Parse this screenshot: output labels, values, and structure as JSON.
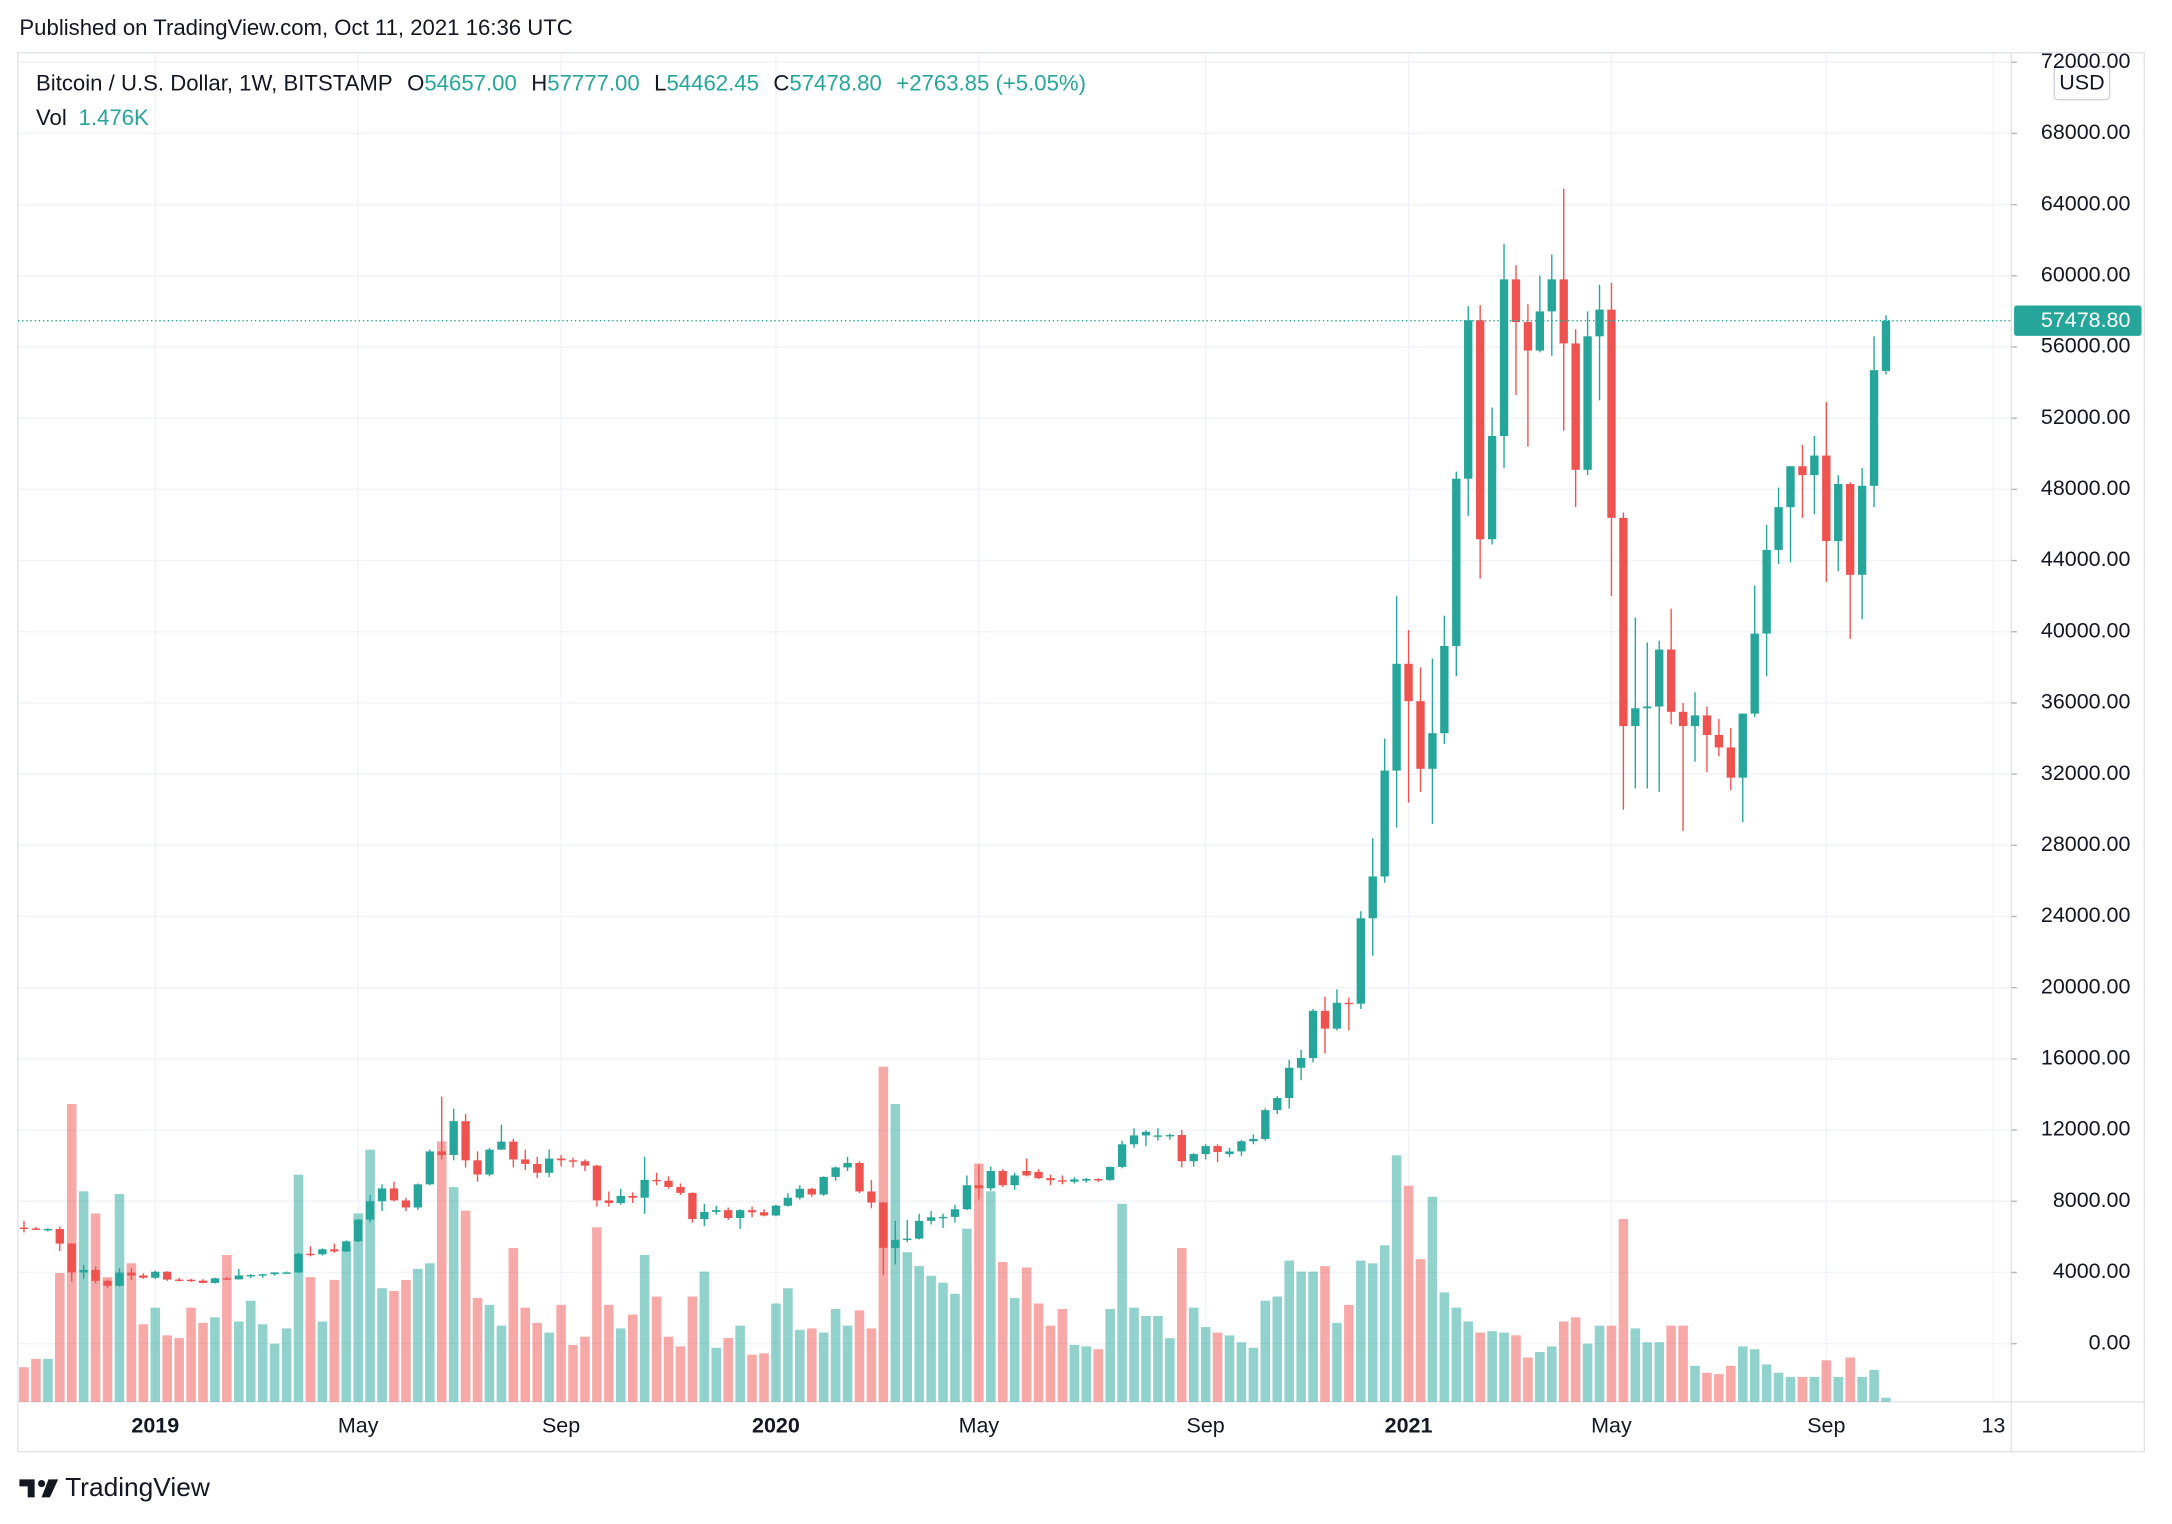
{
  "published": "Published on TradingView.com, Oct 11, 2021 16:36 UTC",
  "logo": "TradingView",
  "chart_data": {
    "type": "candlestick",
    "title": "Bitcoin / U.S. Dollar, 1W, BITSTAMP",
    "ohlc": [
      {
        "label": "O",
        "value": "54657.00"
      },
      {
        "label": "H",
        "value": "57777.00"
      },
      {
        "label": "L",
        "value": "54462.45"
      },
      {
        "label": "C",
        "value": "57478.80"
      }
    ],
    "change": "+2763.85 (+5.05%)",
    "volume_label": "Vol",
    "volume_value": "1.476K",
    "currency": "USD",
    "last_price": {
      "value": 57478.8,
      "label": "57478.80"
    },
    "up_color": "#26a69a",
    "down_color": "#ef5350",
    "grid": true,
    "ylim": [
      -3270,
      72540
    ],
    "yticks": [
      {
        "value": 0,
        "label": "0.00"
      },
      {
        "value": 4000,
        "label": "4000.00"
      },
      {
        "value": 8000,
        "label": "8000.00"
      },
      {
        "value": 12000,
        "label": "12000.00"
      },
      {
        "value": 16000,
        "label": "16000.00"
      },
      {
        "value": 20000,
        "label": "20000.00"
      },
      {
        "value": 24000,
        "label": "24000.00"
      },
      {
        "value": 28000,
        "label": "28000.00"
      },
      {
        "value": 32000,
        "label": "32000.00"
      },
      {
        "value": 36000,
        "label": "36000.00"
      },
      {
        "value": 40000,
        "label": "40000.00"
      },
      {
        "value": 44000,
        "label": "44000.00"
      },
      {
        "value": 48000,
        "label": "48000.00"
      },
      {
        "value": 52000,
        "label": "52000.00"
      },
      {
        "value": 56000,
        "label": "56000.00"
      },
      {
        "value": 60000,
        "label": "60000.00"
      },
      {
        "value": 64000,
        "label": "64000.00"
      },
      {
        "value": 68000,
        "label": "68000.00"
      },
      {
        "value": 72000,
        "label": "72000.00"
      }
    ],
    "categories": [
      null,
      null,
      null,
      null,
      null,
      null,
      null,
      null,
      null,
      null,
      null,
      "2019",
      null,
      null,
      null,
      null,
      null,
      null,
      null,
      null,
      null,
      null,
      null,
      null,
      null,
      null,
      null,
      null,
      "May",
      null,
      null,
      null,
      null,
      null,
      null,
      null,
      null,
      null,
      null,
      null,
      null,
      null,
      null,
      null,
      null,
      "Sep",
      null,
      null,
      null,
      null,
      null,
      null,
      null,
      null,
      null,
      null,
      null,
      null,
      null,
      null,
      null,
      null,
      null,
      "2020",
      null,
      null,
      null,
      null,
      null,
      null,
      null,
      null,
      null,
      null,
      null,
      null,
      null,
      null,
      null,
      null,
      "May",
      null,
      null,
      null,
      null,
      null,
      null,
      null,
      null,
      null,
      null,
      null,
      null,
      null,
      null,
      null,
      null,
      null,
      null,
      "Sep",
      null,
      null,
      null,
      null,
      null,
      null,
      null,
      null,
      null,
      null,
      null,
      null,
      null,
      null,
      null,
      null,
      "2021",
      null,
      null,
      null,
      null,
      null,
      null,
      null,
      null,
      null,
      null,
      null,
      null,
      null,
      null,
      null,
      null,
      "May",
      null,
      null,
      null,
      null,
      null,
      null,
      null,
      null,
      null,
      null,
      null,
      null,
      null,
      null,
      null,
      null,
      null,
      "Sep",
      null,
      null,
      null,
      null,
      null,
      null,
      null,
      null,
      null,
      null,
      null,
      null,
      null,
      "13",
      null
    ],
    "open": [
      6520,
      6470,
      6420,
      6440,
      5620,
      4000,
      4140,
      3530,
      3250,
      3990,
      3830,
      3700,
      4040,
      3600,
      3590,
      3540,
      3410,
      3670,
      3610,
      3830,
      3860,
      3900,
      4000,
      4000,
      5050,
      5020,
      5300,
      5180,
      5750,
      6970,
      8000,
      8720,
      8050,
      7650,
      8950,
      10800,
      10600,
      12500,
      10300,
      9500,
      10900,
      11350,
      10350,
      10100,
      9600,
      10400,
      10300,
      10250,
      10000,
      8050,
      7900,
      8300,
      8200,
      9200,
      9150,
      8800,
      8470,
      7000,
      7400,
      7500,
      7060,
      7500,
      7380,
      7200,
      7750,
      8200,
      8700,
      8380,
      9370,
      9900,
      10150,
      8550,
      7930,
      5380,
      5830,
      5900,
      6900,
      7100,
      7120,
      7550,
      8900,
      8730,
      9700,
      8900,
      9700,
      9650,
      9300,
      9180,
      9100,
      9160,
      9250,
      9200,
      9930,
      11200,
      11700,
      11650,
      11650,
      11720,
      10250,
      10650,
      11100,
      10650,
      10800,
      11370,
      11500,
      13120,
      13800,
      15500,
      16050,
      18700,
      17700,
      19150,
      19100,
      23900,
      26250,
      32200,
      38200,
      36100,
      32300,
      34300,
      39200,
      48600,
      57500,
      45200,
      51000,
      59800,
      57400,
      55800,
      58000,
      59800,
      56200,
      49100,
      56600,
      58100,
      46400,
      34700,
      35700,
      35800,
      39000,
      35500,
      34700,
      35300,
      34200,
      33500,
      31800,
      35400,
      39900,
      44600,
      47000,
      49300,
      48800,
      49900,
      45100,
      48300,
      43200,
      48200,
      54657,
      null,
      null,
      null,
      null,
      null,
      null,
      null,
      null,
      null,
      null
    ],
    "high": [
      6900,
      6560,
      6480,
      6580,
      5650,
      4420,
      4330,
      3600,
      4230,
      4250,
      3950,
      4100,
      4070,
      3700,
      3640,
      3620,
      3700,
      3730,
      4200,
      3900,
      3920,
      4000,
      4050,
      5100,
      5470,
      5350,
      5620,
      5800,
      7000,
      8350,
      8950,
      9100,
      8200,
      9000,
      10900,
      13880,
      13200,
      12900,
      10800,
      11000,
      12300,
      11500,
      10900,
      10500,
      10900,
      10600,
      10450,
      10350,
      10050,
      8550,
      8700,
      8500,
      10500,
      9600,
      9400,
      9000,
      8500,
      7850,
      7750,
      7650,
      7550,
      7700,
      7550,
      7800,
      8450,
      8900,
      8750,
      9400,
      9950,
      10500,
      10250,
      9200,
      7960,
      6900,
      6950,
      7300,
      7450,
      7300,
      7800,
      9450,
      10050,
      9950,
      9800,
      9600,
      10400,
      9800,
      9500,
      9450,
      9350,
      9300,
      9280,
      9950,
      11400,
      12100,
      12000,
      12100,
      11800,
      12000,
      10700,
      11200,
      11200,
      11000,
      11450,
      11750,
      13220,
      13900,
      15950,
      16500,
      18800,
      19500,
      19900,
      19450,
      24300,
      28400,
      34000,
      42000,
      40100,
      38000,
      38500,
      40900,
      49000,
      58300,
      58350,
      52600,
      61800,
      60600,
      58400,
      60000,
      61200,
      64900,
      57000,
      58000,
      59500,
      59600,
      46700,
      40800,
      39400,
      39500,
      41300,
      36000,
      36600,
      35800,
      35100,
      34600,
      35400,
      42600,
      46000,
      48100,
      49300,
      50500,
      51000,
      52900,
      48800,
      48400,
      49200,
      56600,
      57777,
      null,
      null,
      null,
      null,
      null,
      null,
      null,
      null,
      null,
      null
    ],
    "low": [
      6250,
      6380,
      6300,
      5200,
      3480,
      3650,
      3380,
      3120,
      3210,
      3560,
      3650,
      3630,
      3530,
      3500,
      3470,
      3390,
      3380,
      3590,
      3600,
      3680,
      3700,
      3820,
      3950,
      3960,
      4900,
      4950,
      5100,
      5150,
      5700,
      6800,
      7450,
      8000,
      7450,
      7520,
      8900,
      10350,
      10300,
      9900,
      9100,
      9400,
      10900,
      9900,
      9750,
      9300,
      9350,
      9950,
      9900,
      9700,
      7700,
      7700,
      7800,
      7900,
      7300,
      8900,
      8700,
      8350,
      6800,
      6600,
      7250,
      6950,
      6450,
      7100,
      7150,
      7150,
      7700,
      8100,
      8250,
      8300,
      9150,
      9700,
      8450,
      7600,
      3850,
      4450,
      5700,
      5850,
      6700,
      6500,
      6800,
      7500,
      8100,
      8600,
      8800,
      8650,
      9400,
      9250,
      8900,
      8950,
      9000,
      9050,
      9080,
      9150,
      9850,
      11000,
      11100,
      11400,
      11450,
      9900,
      9950,
      10350,
      10200,
      10500,
      10550,
      11200,
      11400,
      12900,
      13200,
      14800,
      15800,
      16300,
      17600,
      17600,
      18800,
      21800,
      25900,
      29000,
      30400,
      31000,
      29200,
      33700,
      37500,
      46500,
      43000,
      44900,
      49200,
      53300,
      50400,
      55700,
      55500,
      51300,
      47000,
      48800,
      53000,
      42000,
      30000,
      31200,
      31200,
      31000,
      34800,
      28800,
      32700,
      32100,
      33000,
      31100,
      29300,
      35200,
      37500,
      43800,
      43900,
      46400,
      46600,
      42800,
      43400,
      39600,
      40700,
      47000,
      54462.45,
      null,
      null,
      null,
      null,
      null,
      null,
      null,
      null,
      null,
      null
    ],
    "close": [
      6470,
      6420,
      6440,
      5620,
      4000,
      4140,
      3530,
      3250,
      3990,
      3830,
      3700,
      4040,
      3600,
      3590,
      3540,
      3410,
      3670,
      3610,
      3830,
      3860,
      3900,
      4000,
      4000,
      5050,
      5020,
      5300,
      5180,
      5750,
      6970,
      8000,
      8720,
      8050,
      7650,
      8950,
      10800,
      10600,
      12500,
      10300,
      9500,
      10900,
      11350,
      10350,
      10100,
      9600,
      10400,
      10300,
      10250,
      10000,
      8050,
      7900,
      8300,
      8200,
      9200,
      9150,
      8800,
      8470,
      7000,
      7400,
      7500,
      7060,
      7500,
      7380,
      7200,
      7750,
      8200,
      8700,
      8380,
      9370,
      9900,
      10150,
      8550,
      7930,
      5380,
      5830,
      5900,
      6900,
      7100,
      7120,
      7550,
      8900,
      8730,
      9700,
      8900,
      9450,
      9450,
      9300,
      9180,
      9100,
      9230,
      9250,
      9200,
      9930,
      11200,
      11700,
      11900,
      11700,
      11720,
      10250,
      10650,
      11100,
      10770,
      10800,
      11370,
      11500,
      13120,
      13800,
      15500,
      16050,
      18700,
      17700,
      19150,
      19100,
      23900,
      26250,
      32200,
      38200,
      36100,
      32300,
      34300,
      39200,
      48600,
      57500,
      45200,
      51000,
      59800,
      57400,
      55800,
      58000,
      59800,
      56200,
      49100,
      56600,
      58100,
      46400,
      34700,
      35700,
      35800,
      39000,
      35500,
      34700,
      35300,
      34200,
      33500,
      31800,
      35400,
      39900,
      44600,
      47000,
      49300,
      48800,
      49900,
      45100,
      48300,
      43200,
      48200,
      54700,
      57478.8,
      null,
      null,
      null,
      null,
      null,
      null,
      null,
      null,
      null,
      null
    ],
    "volume": [
      12250,
      15190,
      15190,
      45570,
      105350,
      74480,
      66640,
      44100,
      73500,
      49000,
      27440,
      33320,
      23520,
      22540,
      33320,
      27930,
      29890,
      51940,
      28420,
      35770,
      27440,
      20580,
      25970,
      80360,
      44100,
      28420,
      43120,
      54880,
      66640,
      89180,
      40180,
      39200,
      43120,
      47040,
      49000,
      92120,
      75950,
      67620,
      36750,
      34300,
      26950,
      54390,
      33320,
      27930,
      24500,
      34300,
      20090,
      23030,
      61740,
      34300,
      25970,
      30870,
      51940,
      37240,
      23030,
      19600,
      37240,
      46060,
      19110,
      22540,
      26950,
      16660,
      17150,
      34790,
      40180,
      25480,
      25970,
      24500,
      32830,
      26950,
      32340,
      25970,
      118580,
      105350,
      52920,
      48020,
      44590,
      42140,
      38220,
      61250,
      84280,
      74480,
      49490,
      36750,
      47530,
      34790,
      26950,
      32830,
      20090,
      19600,
      18620,
      32830,
      70070,
      33320,
      30380,
      30380,
      22540,
      54390,
      33320,
      26460,
      24500,
      23520,
      21070,
      19110,
      35770,
      37240,
      49980,
      46060,
      46060,
      48020,
      27930,
      34300,
      49980,
      49000,
      55370,
      87220,
      76440,
      50470,
      72520,
      38710,
      33320,
      28420,
      24500,
      24990,
      24500,
      23520,
      15680,
      17640,
      19600,
      28420,
      29890,
      20580,
      26950,
      26950,
      64680,
      25970,
      21070,
      21070,
      26950,
      26950,
      12740,
      10290,
      9800,
      12740,
      19600,
      18620,
      13230,
      10290,
      8820,
      8820,
      8820,
      14700,
      8820,
      15680,
      8820,
      11270,
      1476,
      null,
      null,
      null,
      null,
      null,
      null,
      null,
      null,
      null,
      null
    ]
  }
}
